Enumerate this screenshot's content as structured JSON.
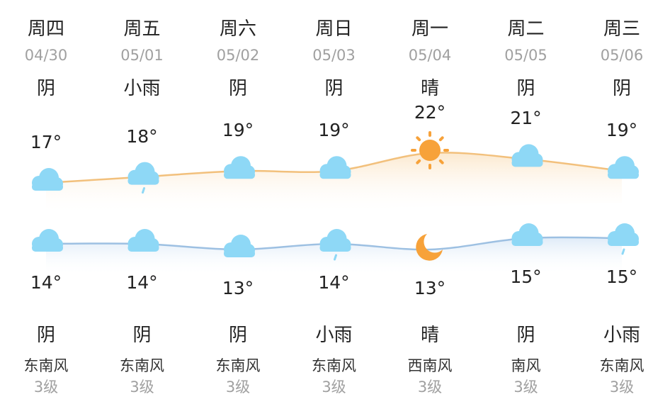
{
  "colors": {
    "high_line": "#f2c07c",
    "low_line": "#9dc0e2",
    "cloud": "#8ed8f6",
    "sun": "#f7a23a",
    "text": "#222222",
    "muted": "#a0a0a0"
  },
  "days": [
    {
      "day": "周四",
      "date": "04/30",
      "day_weather": "阴",
      "high": "17°",
      "high_value": 17,
      "high_icon": "cloud-icon",
      "low": "14°",
      "low_value": 14,
      "low_icon": "cloud-icon",
      "night_weather": "阴",
      "wind": "东南风",
      "level": "3级"
    },
    {
      "day": "周五",
      "date": "05/01",
      "day_weather": "小雨",
      "high": "18°",
      "high_value": 18,
      "high_icon": "cloud-rain-icon",
      "low": "14°",
      "low_value": 14,
      "low_icon": "cloud-icon",
      "night_weather": "阴",
      "wind": "东南风",
      "level": "3级"
    },
    {
      "day": "周六",
      "date": "05/02",
      "day_weather": "阴",
      "high": "19°",
      "high_value": 19,
      "high_icon": "cloud-icon",
      "low": "13°",
      "low_value": 13,
      "low_icon": "cloud-icon",
      "night_weather": "阴",
      "wind": "东南风",
      "level": "3级"
    },
    {
      "day": "周日",
      "date": "05/03",
      "day_weather": "阴",
      "high": "19°",
      "high_value": 19,
      "high_icon": "cloud-icon",
      "low": "14°",
      "low_value": 14,
      "low_icon": "cloud-rain-icon",
      "night_weather": "小雨",
      "wind": "东南风",
      "level": "3级"
    },
    {
      "day": "周一",
      "date": "05/04",
      "day_weather": "晴",
      "high": "22°",
      "high_value": 22,
      "high_icon": "sun-icon",
      "low": "13°",
      "low_value": 13,
      "low_icon": "moon-icon",
      "night_weather": "晴",
      "wind": "西南风",
      "level": "3级"
    },
    {
      "day": "周二",
      "date": "05/05",
      "day_weather": "阴",
      "high": "21°",
      "high_value": 21,
      "high_icon": "cloud-icon",
      "low": "15°",
      "low_value": 15,
      "low_icon": "cloud-icon",
      "night_weather": "阴",
      "wind": "南风",
      "level": "3级"
    },
    {
      "day": "周三",
      "date": "05/06",
      "day_weather": "阴",
      "high": "19°",
      "high_value": 19,
      "high_icon": "cloud-icon",
      "low": "15°",
      "low_value": 15,
      "low_icon": "cloud-rain-icon",
      "night_weather": "小雨",
      "wind": "东南风",
      "level": "3级"
    }
  ]
}
